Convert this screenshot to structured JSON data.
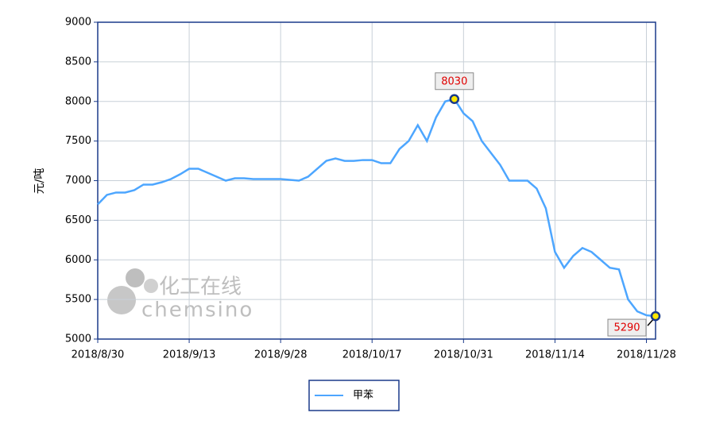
{
  "chart_data": {
    "type": "line",
    "y_label": "元/吨",
    "watermark": {
      "cn": "化工在线",
      "en": "chemsino"
    },
    "categories": [
      "2018/8/30",
      null,
      null,
      null,
      null,
      null,
      null,
      null,
      null,
      null,
      "2018/9/13",
      null,
      null,
      null,
      null,
      null,
      null,
      null,
      null,
      null,
      "2018/9/28",
      null,
      null,
      null,
      null,
      null,
      null,
      null,
      null,
      null,
      "2018/10/17",
      null,
      null,
      null,
      null,
      null,
      null,
      null,
      null,
      null,
      "2018/10/31",
      null,
      null,
      null,
      null,
      null,
      null,
      null,
      null,
      null,
      "2018/11/14",
      null,
      null,
      null,
      null,
      null,
      null,
      null,
      null,
      null,
      "2018/11/28",
      null
    ],
    "series": [
      {
        "name": "甲苯",
        "color": "#4da6ff",
        "values": [
          6700,
          6820,
          6850,
          6850,
          6880,
          6950,
          6950,
          6980,
          7020,
          7080,
          7150,
          7150,
          7100,
          7050,
          7000,
          7030,
          7030,
          7020,
          7020,
          7020,
          7020,
          7010,
          7000,
          7050,
          7150,
          7250,
          7280,
          7250,
          7250,
          7260,
          7260,
          7220,
          7220,
          7400,
          7500,
          7700,
          7500,
          7800,
          8000,
          8030,
          7850,
          7750,
          7500,
          7350,
          7200,
          7000,
          7000,
          7000,
          6900,
          6650,
          6100,
          5900,
          6050,
          6150,
          6100,
          6000,
          5900,
          5880,
          5500,
          5350,
          5300,
          5290
        ]
      }
    ],
    "ylim": [
      5000,
      9000
    ],
    "yticks": [
      5000,
      5500,
      6000,
      6500,
      7000,
      7500,
      8000,
      8500,
      9000
    ],
    "labeled_points": [
      39,
      61
    ],
    "grid": true
  }
}
